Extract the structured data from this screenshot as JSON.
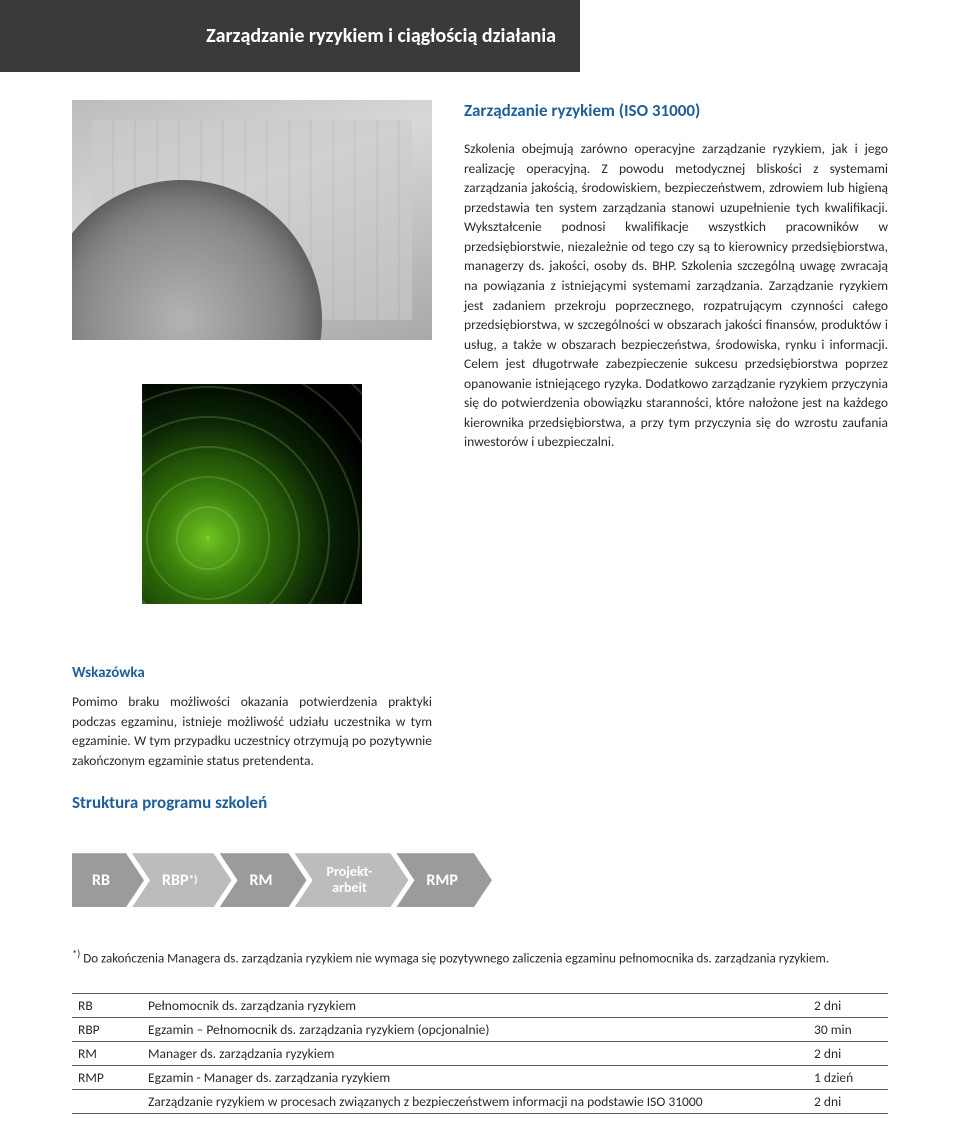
{
  "header": {
    "title": "Zarządzanie ryzykiem i ciągłością działania"
  },
  "left": {
    "tip_title": "Wskazówka",
    "tip_text": "Pomimo braku możliwości okazania potwierdzenia praktyki podczas egzaminu, istnieje możliwość udziału uczestnika w tym egzaminie. W tym przypadku uczestnicy otrzymują po pozytywnie zakończonym egzaminie status pretendenta."
  },
  "right": {
    "subheading": "Zarządzanie ryzykiem (ISO 31000)",
    "body": "Szkolenia obejmują zarówno operacyjne zarządzanie ryzykiem, jak i jego realizację operacyjną. Z powodu metodycznej bliskości z systemami zarządzania jakością, środowiskiem, bezpieczeństwem, zdrowiem lub higieną przedstawia ten system zarządzania stanowi uzupełnienie tych kwalifikacji. Wykształcenie podnosi kwalifikacje wszystkich pracowników w przedsiębiorstwie, niezależnie od tego czy są to kierownicy przedsiębiorstwa, managerzy ds. jakości, osoby ds. BHP. Szkolenia szczególną uwagę zwracają na powiązania z istniejącymi systemami zarządzania. Zarządzanie ryzykiem jest zadaniem przekroju poprzecznego, rozpatrującym czynności całego przedsiębiorstwa, w szczególności w obszarach jakości finansów, produktów i usług, a także w obszarach bezpieczeństwa, środowiska, rynku i informacji. Celem jest długotrwałe zabezpieczenie sukcesu przedsiębiorstwa poprzez opanowanie istniejącego ryzyka. Dodatkowo zarządzanie ryzykiem przyczynia się do potwierdzenia obowiązku staranności, które nałożone jest na każdego kierownika przedsiębiorstwa, a przy tym przyczynia się do wzrostu zaufania inwestorów i ubezpieczalni."
  },
  "struct": {
    "heading": "Struktura programu szkoleń",
    "chevrons": {
      "c1": "RB",
      "c2_html": "RBP",
      "c2_sup": "*)",
      "c3": "RM",
      "c4_line1": "Projekt-",
      "c4_line2": "arbeit",
      "c5": "RMP"
    }
  },
  "footnote": {
    "sup": "*)",
    "text": " Do zakończenia Managera ds. zarządzania ryzykiem nie wymaga się pozytywnego zaliczenia egzaminu pełnomocnika ds. zarządzania ryzykiem."
  },
  "table": {
    "rows": [
      {
        "code": "RB",
        "desc": "Pełnomocnik ds. zarządzania ryzykiem",
        "dur": "2 dni"
      },
      {
        "code": "RBP",
        "desc": "Egzamin – Pełnomocnik ds. zarządzania ryzykiem (opcjonalnie)",
        "dur": "30 min"
      },
      {
        "code": "RM",
        "desc": "Manager ds. zarządzania ryzykiem",
        "dur": "2 dni"
      },
      {
        "code": "RMP",
        "desc": "Egzamin - Manager ds. zarządzania ryzykiem",
        "dur": "1 dzień"
      },
      {
        "code": "",
        "desc": "Zarządzanie ryzykiem w procesach związanych z bezpieczeństwem informacji na podstawie ISO 31000",
        "dur": "2 dni"
      }
    ]
  }
}
